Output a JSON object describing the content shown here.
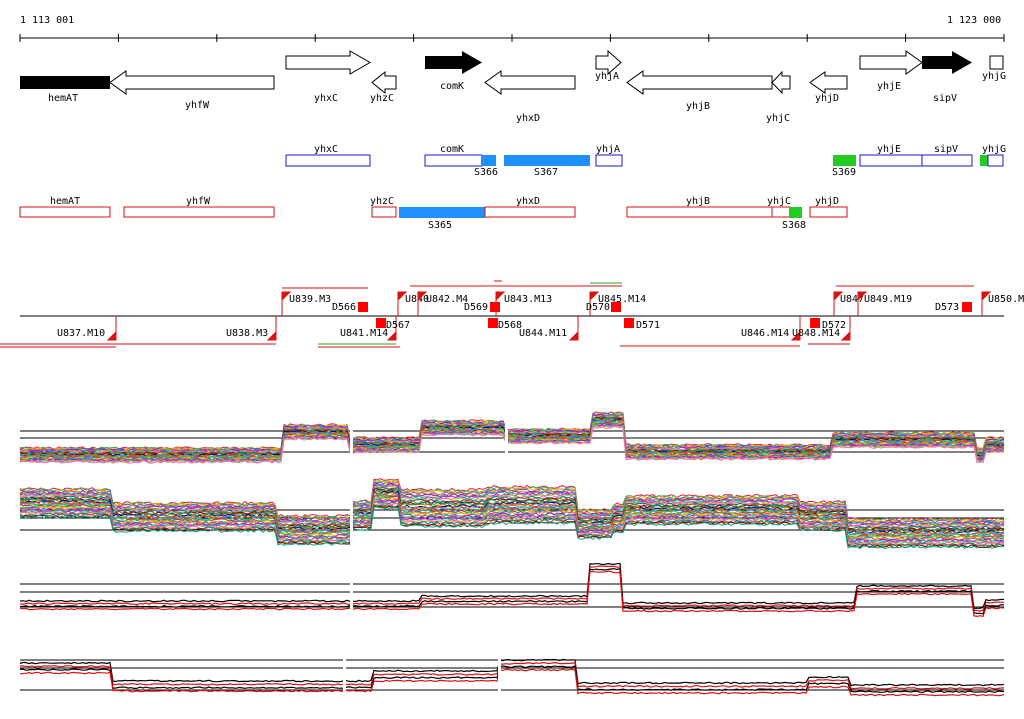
{
  "ruler": {
    "start_label": "1 113 001",
    "end_label": "1 123 000"
  },
  "colors": {
    "sense_outline": "#1a1acc",
    "antisense_outline": "#dd1111",
    "blue_fill": "#1e90ff",
    "green_fill": "#22cc22",
    "red_marker": "#ff0000",
    "gene_black": "#000000"
  },
  "genes": [
    {
      "label": "hemAT",
      "style": "solid-block"
    },
    {
      "label": "yhfW",
      "style": "outline-arrow-left"
    },
    {
      "label": "yhxC",
      "style": "outline-arrow-right"
    },
    {
      "label": "yhzC",
      "style": "outline-arrow-left"
    },
    {
      "label": "comK",
      "style": "solid-arrow-right"
    },
    {
      "label": "yhxD",
      "style": "outline-arrow-left"
    },
    {
      "label": "yhjA",
      "style": "outline-arrow-right"
    },
    {
      "label": "yhjB",
      "style": "outline-arrow-left"
    },
    {
      "label": "yhjC",
      "style": "outline-arrow-left"
    },
    {
      "label": "yhjD",
      "style": "outline-arrow-left"
    },
    {
      "label": "yhjE",
      "style": "outline-arrow-right"
    },
    {
      "label": "sipV",
      "style": "solid-arrow-right"
    },
    {
      "label": "yhjG",
      "style": "outline-box"
    }
  ],
  "sense_track": {
    "genes": [
      "yhxC",
      "comK",
      "yhjA",
      "yhjE",
      "sipV",
      "yhjG"
    ],
    "segments": [
      "S366",
      "S367",
      "S369"
    ]
  },
  "antisense_track": {
    "genes": [
      "hemAT",
      "yhfW",
      "yhzC",
      "yhxD",
      "yhjB",
      "yhjC",
      "yhjD"
    ],
    "segments": [
      "S365",
      "S368"
    ]
  },
  "upstream_markers": [
    "U839.M3",
    "U840",
    "U842.M4",
    "U843.M13",
    "U845.M14",
    "U847",
    "U849.M19",
    "U850.M"
  ],
  "downstream_markers": [
    "U837.M10",
    "U838.M3",
    "U841.M14",
    "U844.M11",
    "U846.M14",
    "U848.M14"
  ],
  "d_markers": [
    "D566",
    "D567",
    "D569",
    "D568",
    "D570",
    "D571",
    "D572",
    "D573"
  ],
  "profile_panels": [
    {
      "name": "sense-expression-profiles"
    },
    {
      "name": "antisense-expression-profiles"
    },
    {
      "name": "sense-summary-profile"
    },
    {
      "name": "antisense-summary-profile"
    }
  ]
}
